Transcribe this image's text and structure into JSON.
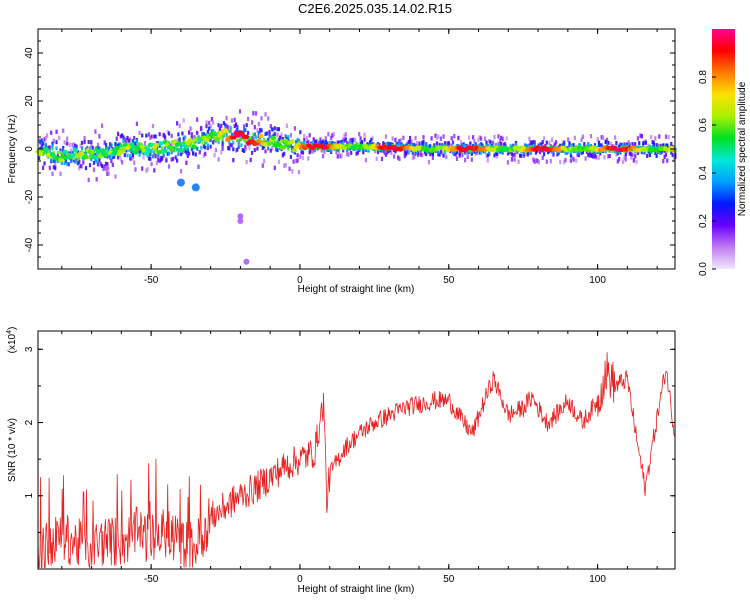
{
  "title": "C2E6.2025.035.14.02.R15",
  "chart_data": [
    {
      "type": "heatmap",
      "xlabel": "Height of straight line (km)",
      "ylabel": "Frequency (Hz)",
      "xlim": [
        -88,
        126
      ],
      "ylim": [
        -50,
        50
      ],
      "xticks": [
        -50,
        0,
        50,
        100
      ],
      "yticks": [
        -40,
        -20,
        0,
        20,
        40
      ],
      "colorbar": {
        "label": "Normalized spectral amplitude",
        "range": [
          0.0,
          1.0
        ],
        "ticks": [
          "0.0",
          "0.2",
          "0.4",
          "0.6",
          "0.8"
        ],
        "tick_values": [
          0.0,
          0.2,
          0.4,
          0.6,
          0.8
        ],
        "colors": [
          "#f2e6ff",
          "#c07cf0",
          "#6a00ff",
          "#0018ff",
          "#00a0ff",
          "#00e8d8",
          "#00e020",
          "#aaf000",
          "#ffe000",
          "#ff7a00",
          "#ff0000",
          "#ff0090"
        ]
      },
      "ridge_frequency": [
        {
          "x": -88,
          "y": 0
        },
        {
          "x": -80,
          "y": -3
        },
        {
          "x": -70,
          "y": -2
        },
        {
          "x": -60,
          "y": 0
        },
        {
          "x": -50,
          "y": 0
        },
        {
          "x": -45,
          "y": 1
        },
        {
          "x": -40,
          "y": 1
        },
        {
          "x": -35,
          "y": 3
        },
        {
          "x": -30,
          "y": 5
        },
        {
          "x": -25,
          "y": 6
        },
        {
          "x": -20,
          "y": 5
        },
        {
          "x": -15,
          "y": 4
        },
        {
          "x": -10,
          "y": 3
        },
        {
          "x": -5,
          "y": 2
        },
        {
          "x": 0,
          "y": 1
        },
        {
          "x": 10,
          "y": 1
        },
        {
          "x": 20,
          "y": 1
        },
        {
          "x": 40,
          "y": 0
        },
        {
          "x": 60,
          "y": 0
        },
        {
          "x": 80,
          "y": 0
        },
        {
          "x": 100,
          "y": 0
        },
        {
          "x": 126,
          "y": 0
        }
      ],
      "scatter_blobs": [
        {
          "x": -40,
          "y": -14
        },
        {
          "x": -35,
          "y": -16
        },
        {
          "x": -20,
          "y": -28
        },
        {
          "x": -20,
          "y": -30
        },
        {
          "x": -18,
          "y": -47
        },
        {
          "x": -65,
          "y": -8
        }
      ]
    },
    {
      "type": "line",
      "xlabel": "Height of straight line (km)",
      "ylabel": "SNR (10 * v/v)",
      "multiplier_label": "(x10",
      "multiplier_exp": "4",
      "xlim": [
        -88,
        126
      ],
      "ylim": [
        0,
        3.25
      ],
      "xticks": [
        -50,
        0,
        50,
        100
      ],
      "yticks": [
        1,
        2,
        3
      ],
      "color": "#e8201e",
      "series": [
        {
          "values": [
            {
              "x": -88,
              "y": 0.2
            },
            {
              "x": -85,
              "y": 0.3
            },
            {
              "x": -80,
              "y": 0.45
            },
            {
              "x": -75,
              "y": 0.35
            },
            {
              "x": -70,
              "y": 0.3
            },
            {
              "x": -65,
              "y": 0.4
            },
            {
              "x": -60,
              "y": 0.35
            },
            {
              "x": -55,
              "y": 0.5
            },
            {
              "x": -50,
              "y": 0.4
            },
            {
              "x": -45,
              "y": 0.5
            },
            {
              "x": -40,
              "y": 0.35
            },
            {
              "x": -35,
              "y": 0.3
            },
            {
              "x": -30,
              "y": 0.7
            },
            {
              "x": -25,
              "y": 0.85
            },
            {
              "x": -20,
              "y": 1.0
            },
            {
              "x": -15,
              "y": 1.1
            },
            {
              "x": -10,
              "y": 1.25
            },
            {
              "x": -5,
              "y": 1.4
            },
            {
              "x": 0,
              "y": 1.5
            },
            {
              "x": 5,
              "y": 1.6
            },
            {
              "x": 8,
              "y": 2.3
            },
            {
              "x": 9,
              "y": 0.9
            },
            {
              "x": 10,
              "y": 1.3
            },
            {
              "x": 15,
              "y": 1.65
            },
            {
              "x": 20,
              "y": 1.85
            },
            {
              "x": 25,
              "y": 2.0
            },
            {
              "x": 30,
              "y": 2.1
            },
            {
              "x": 35,
              "y": 2.2
            },
            {
              "x": 40,
              "y": 2.25
            },
            {
              "x": 45,
              "y": 2.3
            },
            {
              "x": 50,
              "y": 2.3
            },
            {
              "x": 55,
              "y": 2.0
            },
            {
              "x": 58,
              "y": 1.85
            },
            {
              "x": 62,
              "y": 2.3
            },
            {
              "x": 65,
              "y": 2.6
            },
            {
              "x": 70,
              "y": 2.1
            },
            {
              "x": 75,
              "y": 2.2
            },
            {
              "x": 78,
              "y": 2.35
            },
            {
              "x": 80,
              "y": 2.2
            },
            {
              "x": 83,
              "y": 2.0
            },
            {
              "x": 86,
              "y": 2.1
            },
            {
              "x": 90,
              "y": 2.3
            },
            {
              "x": 95,
              "y": 2.0
            },
            {
              "x": 100,
              "y": 2.3
            },
            {
              "x": 103,
              "y": 2.7
            },
            {
              "x": 106,
              "y": 2.5
            },
            {
              "x": 110,
              "y": 2.6
            },
            {
              "x": 113,
              "y": 1.8
            },
            {
              "x": 116,
              "y": 1.1
            },
            {
              "x": 118,
              "y": 1.6
            },
            {
              "x": 121,
              "y": 2.3
            },
            {
              "x": 123,
              "y": 2.75
            },
            {
              "x": 126,
              "y": 1.8
            }
          ]
        }
      ]
    }
  ]
}
